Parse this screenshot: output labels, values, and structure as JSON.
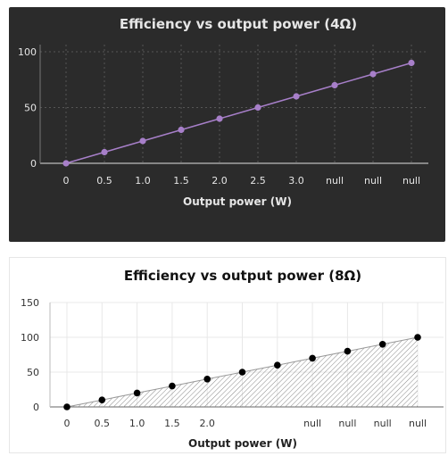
{
  "chart_data": [
    {
      "type": "line",
      "title": "Efficiency vs output power (4Ω)",
      "xlabel": "Output power (W)",
      "ylabel": "",
      "categories": [
        "0",
        "0.5",
        "1.0",
        "1.5",
        "2.0",
        "2.5",
        "3.0",
        "null",
        "null",
        "null"
      ],
      "values": [
        0,
        10,
        20,
        30,
        40,
        50,
        60,
        70,
        80,
        90
      ],
      "yticks": [
        0,
        50,
        100
      ],
      "ylim": [
        0,
        100
      ],
      "grid": true,
      "theme": "dark",
      "colors": {
        "background": "#2b2b2b",
        "series": "#a77fc9",
        "text": "#e6e6e6",
        "grid": "#555555"
      }
    },
    {
      "type": "area",
      "title": "Efficiency vs output power (8Ω)",
      "xlabel": "Output power (W)",
      "ylabel": "",
      "categories": [
        "0",
        "0.5",
        "1.0",
        "1.5",
        "2.0",
        "",
        "",
        "null",
        "null",
        "null",
        "null"
      ],
      "values": [
        0,
        10,
        20,
        30,
        40,
        50,
        60,
        70,
        80,
        90,
        100
      ],
      "yticks": [
        0,
        50,
        100,
        150
      ],
      "ylim": [
        0,
        150
      ],
      "grid": true,
      "theme": "light",
      "fill": "hatched",
      "colors": {
        "background": "#ffffff",
        "series": "#000000",
        "text": "#333333",
        "grid": "#e8e8e8"
      }
    }
  ]
}
